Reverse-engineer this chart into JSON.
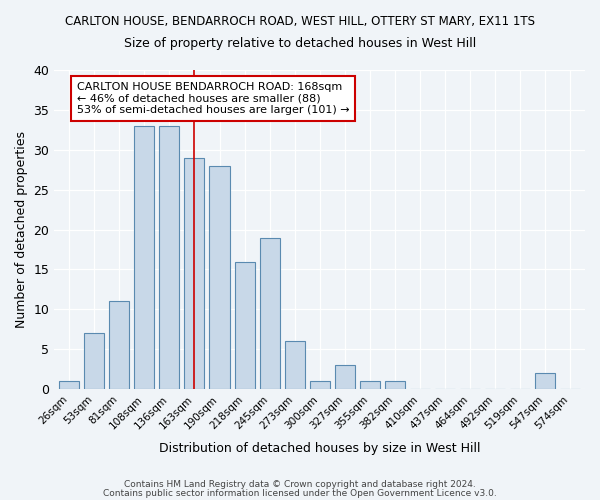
{
  "title1": "CARLTON HOUSE, BENDARROCH ROAD, WEST HILL, OTTERY ST MARY, EX11 1TS",
  "title2": "Size of property relative to detached houses in West Hill",
  "xlabel": "Distribution of detached houses by size in West Hill",
  "ylabel": "Number of detached properties",
  "bins": [
    "26sqm",
    "53sqm",
    "81sqm",
    "108sqm",
    "136sqm",
    "163sqm",
    "190sqm",
    "218sqm",
    "245sqm",
    "273sqm",
    "300sqm",
    "327sqm",
    "355sqm",
    "382sqm",
    "410sqm",
    "437sqm",
    "464sqm",
    "492sqm",
    "519sqm",
    "547sqm",
    "574sqm"
  ],
  "values": [
    1,
    7,
    11,
    33,
    33,
    29,
    28,
    16,
    19,
    6,
    1,
    3,
    1,
    1,
    0,
    0,
    0,
    0,
    0,
    2,
    0
  ],
  "bar_color": "#c8d8e8",
  "bar_edge_color": "#5a8ab0",
  "vline_x_index": 5,
  "vline_color": "#cc0000",
  "ylim": [
    0,
    40
  ],
  "yticks": [
    0,
    5,
    10,
    15,
    20,
    25,
    30,
    35,
    40
  ],
  "annotation_text": "CARLTON HOUSE BENDARROCH ROAD: 168sqm\n← 46% of detached houses are smaller (88)\n53% of semi-detached houses are larger (101) →",
  "annotation_fontsize": 8,
  "footer1": "Contains HM Land Registry data © Crown copyright and database right 2024.",
  "footer2": "Contains public sector information licensed under the Open Government Licence v3.0.",
  "bg_color": "#f0f4f8",
  "plot_bg_color": "#f0f4f8"
}
